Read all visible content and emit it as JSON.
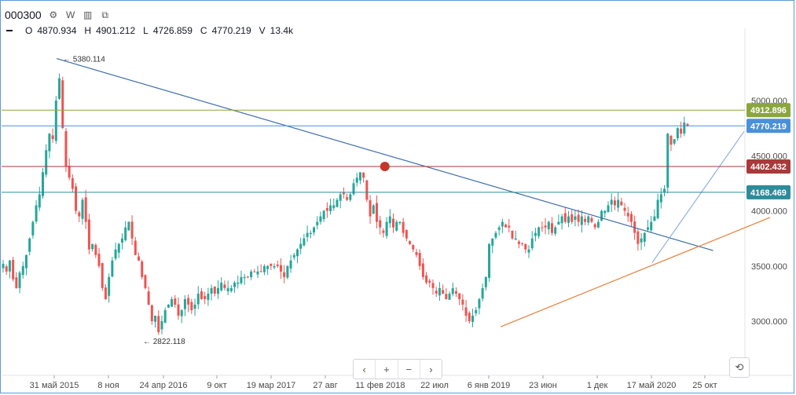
{
  "header": {
    "symbol": "000300",
    "settings_icon": "gear-icon",
    "interval": "W",
    "indicators_icon": "bar-chart-icon",
    "screenshot_icon": "copy-icon"
  },
  "ohlc": {
    "o_label": "O",
    "o": "4870.934",
    "h_label": "H",
    "h": "4901.212",
    "l_label": "L",
    "l": "4726.859",
    "c_label": "C",
    "c": "4770.219",
    "v_label": "V",
    "v": "13.4k"
  },
  "nav": {
    "scroll_left": "‹",
    "zoom_in": "+",
    "zoom_out": "−",
    "scroll_right": "›"
  },
  "reset_icon": "reset-icon",
  "colors": {
    "up": "#26a69a",
    "down": "#ef5350",
    "trend1": "#3f6fa8",
    "trend2": "#e67e3a",
    "fan": "#8fb0e0"
  },
  "chart_data": {
    "type": "candlestick",
    "interval": "W",
    "y_ticks": [
      3000,
      3500,
      4000,
      4500,
      5000
    ],
    "y_tick_labels": [
      "3000.000",
      "3500.000",
      "4000.000",
      "4500.000",
      "5000.000"
    ],
    "ylim": [
      2700,
      5550
    ],
    "x_labels": [
      "31 май 2015",
      "8 ноя",
      "24 апр 2016",
      "9 окт",
      "19 мар 2017",
      "27 авг",
      "11 фев 2018",
      "22 июл",
      "6 янв 2019",
      "23 июн",
      "1 дек",
      "17 май 2020",
      "25 окт"
    ],
    "annotations": [
      {
        "text": "← 5380.114",
        "date": "2015-06-08",
        "value": 5380.114
      },
      {
        "text": "← 2822.118",
        "date": "2016-01-29",
        "value": 2822.118
      }
    ],
    "price_levels": [
      {
        "value": 4912.896,
        "label": "4912.896",
        "color": "#8aa63c"
      },
      {
        "value": 4770.219,
        "label": "4770.219",
        "color": "#4a90d9"
      },
      {
        "value": 4402.432,
        "label": "4402.432",
        "color": "#a83a3a"
      },
      {
        "value": 4168.469,
        "label": "4168.469",
        "color": "#2e8b9a"
      }
    ],
    "marker": {
      "date": "2018-01-26",
      "value": 4402.432
    },
    "trendlines": [
      {
        "name": "downtrend",
        "from": [
          "2015-06-08",
          5380
        ],
        "to": [
          "2020-09-15",
          3640
        ]
      },
      {
        "name": "support",
        "from": [
          "2019-01-01",
          2950
        ],
        "to": [
          "2021-03-01",
          3940
        ]
      },
      {
        "name": "fan",
        "from": [
          "2020-03-20",
          3530
        ],
        "to": [
          "2020-12-15",
          4720
        ]
      }
    ],
    "closes": [
      3520,
      3450,
      3550,
      3380,
      3300,
      3440,
      3500,
      3600,
      3750,
      3900,
      4050,
      4150,
      4350,
      4550,
      4700,
      4650,
      5000,
      5200,
      4750,
      4400,
      4300,
      4200,
      4000,
      3950,
      4100,
      3900,
      3650,
      3700,
      3600,
      3500,
      3300,
      3200,
      3400,
      3550,
      3650,
      3700,
      3750,
      3850,
      3900,
      3750,
      3600,
      3550,
      3400,
      3300,
      3150,
      3000,
      3050,
      2900,
      3000,
      3100,
      3150,
      3200,
      3150,
      3050,
      3100,
      3200,
      3150,
      3100,
      3150,
      3250,
      3200,
      3200,
      3250,
      3300,
      3250,
      3300,
      3350,
      3300,
      3300,
      3300,
      3350,
      3350,
      3400,
      3400,
      3400,
      3450,
      3450,
      3450,
      3450,
      3500,
      3500,
      3500,
      3500,
      3500,
      3450,
      3400,
      3500,
      3550,
      3600,
      3650,
      3700,
      3750,
      3800,
      3800,
      3850,
      3900,
      3950,
      4000,
      4000,
      4050,
      4050,
      4100,
      4150,
      4150,
      4100,
      4150,
      4250,
      4300,
      4350,
      4300,
      4100,
      3950,
      4050,
      3900,
      3850,
      3800,
      3900,
      3950,
      3850,
      3900,
      3900,
      3800,
      3750,
      3700,
      3650,
      3600,
      3500,
      3400,
      3350,
      3350,
      3300,
      3250,
      3300,
      3250,
      3200,
      3250,
      3300,
      3250,
      3200,
      3150,
      3050,
      3000,
      3050,
      3100,
      3200,
      3300,
      3400,
      3700,
      3750,
      3800,
      3850,
      3900,
      3850,
      3850,
      3750,
      3750,
      3700,
      3700,
      3650,
      3650,
      3750,
      3800,
      3850,
      3850,
      3850,
      3900,
      3800,
      3850,
      3900,
      3950,
      3900,
      3950,
      3900,
      3950,
      3900,
      3950,
      3900,
      3950,
      3900,
      3850,
      3900,
      4000,
      4000,
      4050,
      4100,
      4050,
      4100,
      4050,
      4000,
      3950,
      3900,
      3800,
      3700,
      3750,
      3800,
      3850,
      3900,
      3950,
      4100,
      4150,
      4200,
      4700,
      4600,
      4650,
      4750,
      4700,
      4800,
      4770
    ]
  }
}
